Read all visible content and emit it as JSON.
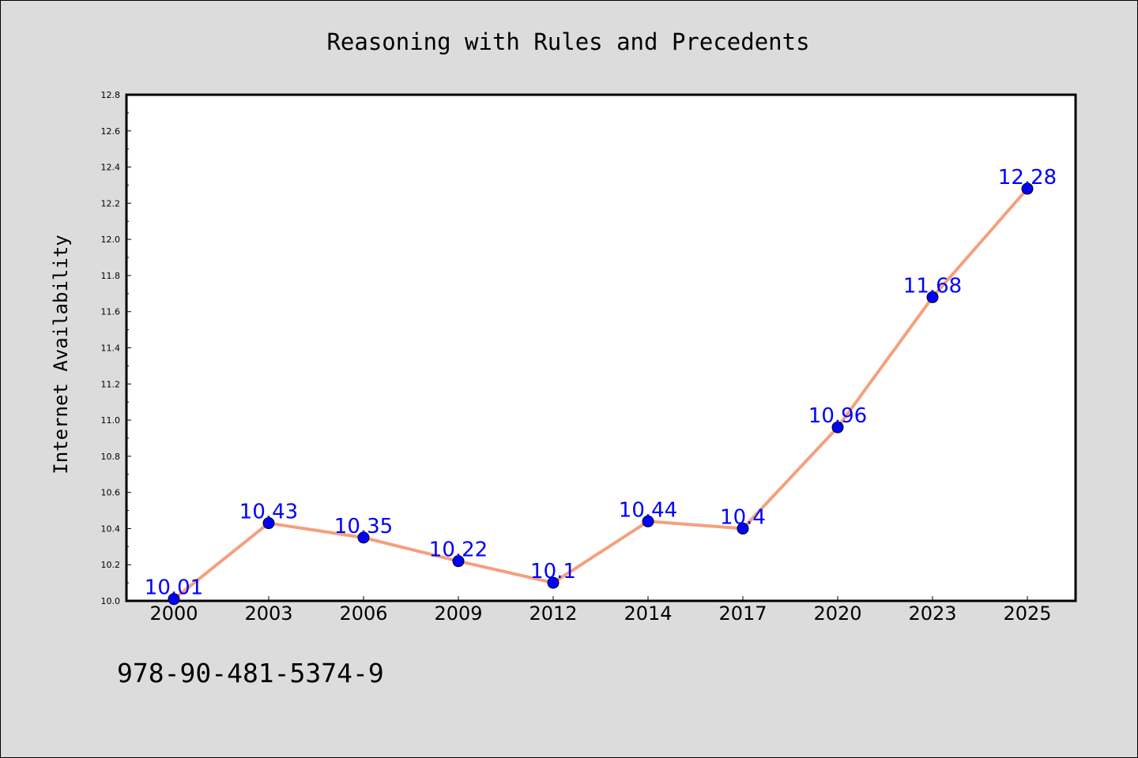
{
  "chart_data": {
    "type": "line",
    "title": "Reasoning with Rules and Precedents",
    "xlabel": "",
    "ylabel": "Internet Availability",
    "categories": [
      "2000",
      "2003",
      "2006",
      "2009",
      "2012",
      "2014",
      "2017",
      "2020",
      "2023",
      "2025"
    ],
    "series": [
      {
        "values": [
          10.01,
          10.43,
          10.35,
          10.22,
          10.1,
          10.44,
          10.4,
          10.96,
          11.68,
          12.28
        ],
        "data_labels": [
          "10.01",
          "10.43",
          "10.35",
          "10.22",
          "10.1",
          "10.44",
          "10.4",
          "10.96",
          "11.68",
          "12.28"
        ]
      }
    ],
    "ylim": [
      10.0,
      12.8
    ],
    "yticks": [
      "10.0",
      "10.2",
      "10.4",
      "10.6",
      "10.8",
      "11.0",
      "11.2",
      "11.4",
      "11.6",
      "11.8",
      "12.0",
      "12.2",
      "12.4",
      "12.6",
      "12.8"
    ],
    "grid": false,
    "legend": "none",
    "colors": {
      "line": "#f4a07e",
      "marker": "#0000ff",
      "data_label": "#0000ff",
      "background": "#dcdcdc",
      "plot_background": "#ffffff"
    }
  },
  "footer": {
    "isbn": "978-90-481-5374-9"
  }
}
